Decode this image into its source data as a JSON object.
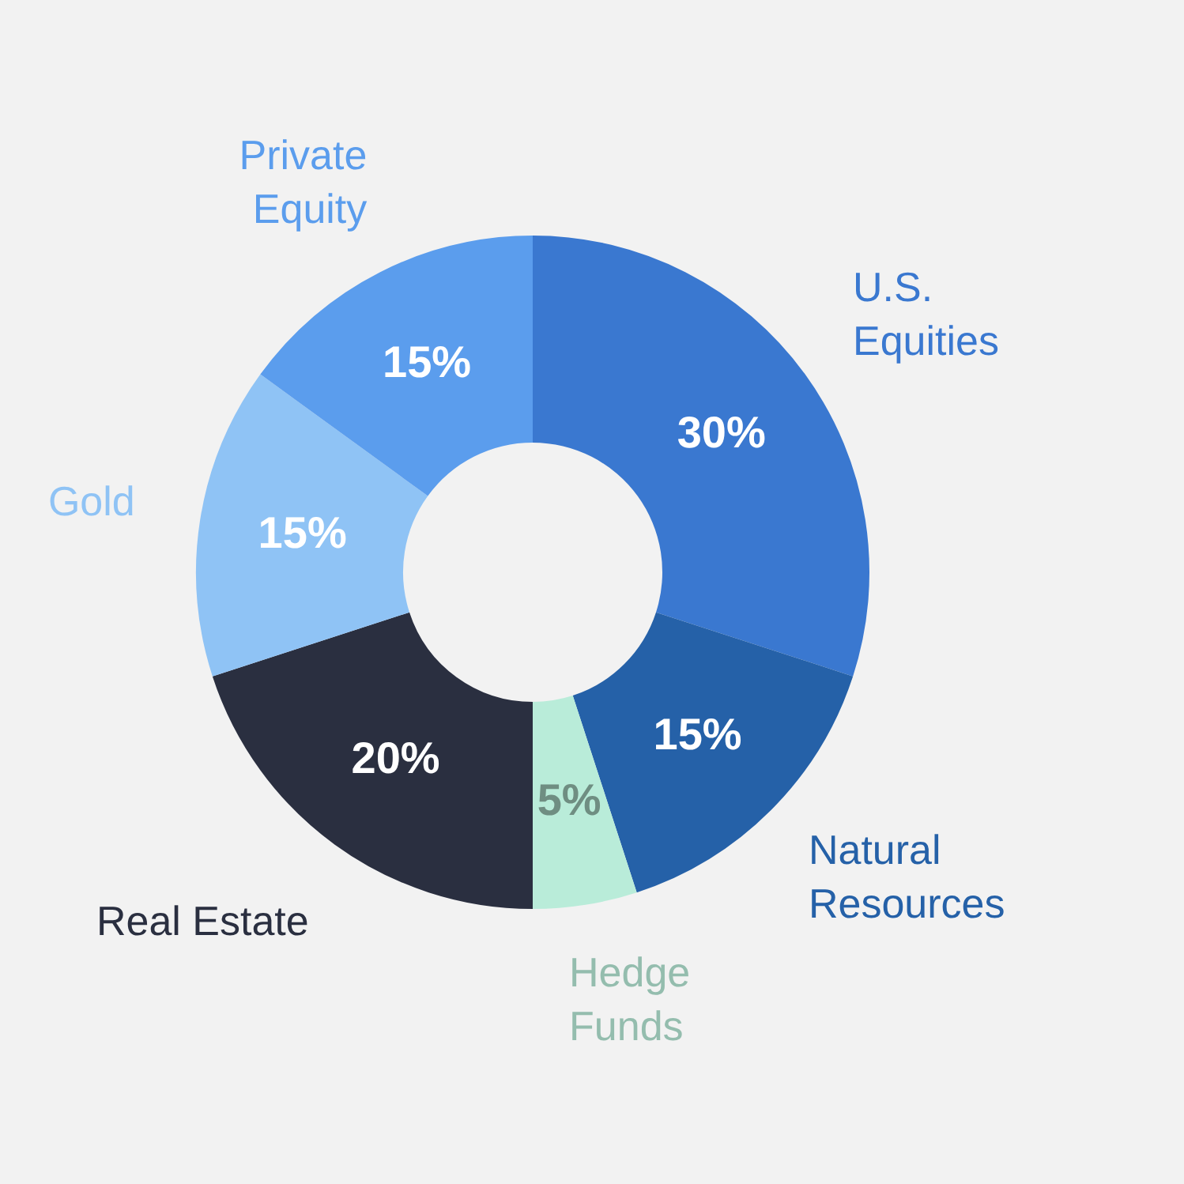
{
  "chart_data": {
    "type": "donut",
    "categories": [
      "U.S. Equities",
      "Natural Resources",
      "Hedge Funds",
      "Real Estate",
      "Gold",
      "Private Equity"
    ],
    "values": [
      30,
      15,
      5,
      20,
      15,
      15
    ],
    "colors": [
      "#3a78d0",
      "#2561a8",
      "#b9ecd9",
      "#2a2f40",
      "#8fc3f5",
      "#5b9ded"
    ],
    "value_labels": [
      "30%",
      "15%",
      "5%",
      "20%",
      "15%",
      "15%"
    ],
    "legend": false
  }
}
